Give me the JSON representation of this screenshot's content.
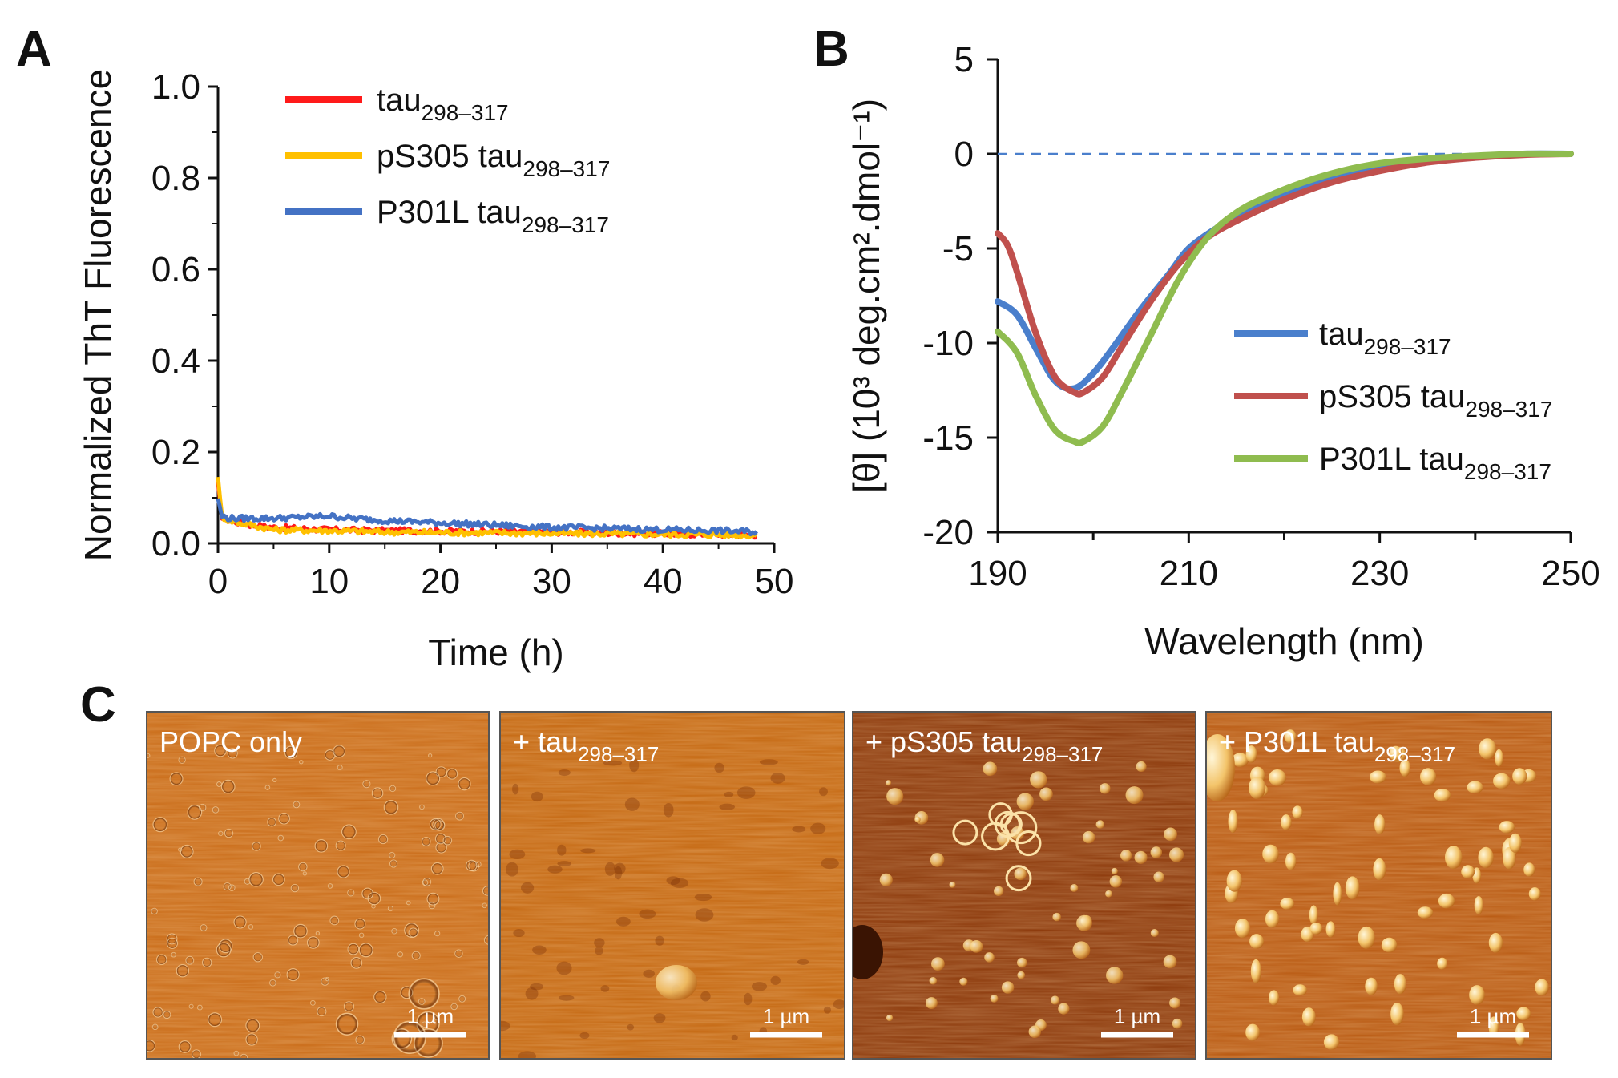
{
  "panels": {
    "A": "A",
    "B": "B",
    "C": "C"
  },
  "chart_data": [
    {
      "panel": "A",
      "type": "line",
      "xlabel": "Time (h)",
      "ylabel": "Normalized ThT Fluorescence",
      "xlim": [
        0,
        50
      ],
      "ylim": [
        0.0,
        1.0
      ],
      "xticks": [
        "0",
        "10",
        "20",
        "30",
        "40",
        "50"
      ],
      "yticks": [
        "0.0",
        "0.2",
        "0.4",
        "0.6",
        "0.8",
        "1.0"
      ],
      "xtick_values": [
        0,
        10,
        20,
        30,
        40,
        50
      ],
      "ytick_values": [
        0.0,
        0.2,
        0.4,
        0.6,
        0.8,
        1.0
      ],
      "legend_position": "top-right",
      "series": [
        {
          "name": "tau",
          "subscript": "298–317",
          "color": "#ff1a1a",
          "x": [
            0,
            0.3,
            1,
            3,
            5,
            10,
            15,
            20,
            25,
            30,
            35,
            40,
            45,
            48.5
          ],
          "y": [
            0.13,
            0.06,
            0.05,
            0.04,
            0.035,
            0.03,
            0.028,
            0.027,
            0.026,
            0.025,
            0.023,
            0.021,
            0.02,
            0.018
          ]
        },
        {
          "name": "pS305 tau",
          "subscript": "298–317",
          "color": "#ffc000",
          "x": [
            0,
            0.3,
            1,
            3,
            5,
            10,
            15,
            20,
            25,
            30,
            35,
            40,
            45,
            48.5
          ],
          "y": [
            0.15,
            0.06,
            0.05,
            0.04,
            0.03,
            0.028,
            0.025,
            0.024,
            0.023,
            0.022,
            0.021,
            0.02,
            0.019,
            0.018
          ]
        },
        {
          "name": "P301L tau",
          "subscript": "298–317",
          "color": "#4472c4",
          "x": [
            0,
            0.3,
            1,
            3,
            5,
            8,
            10,
            12,
            15,
            20,
            25,
            30,
            35,
            40,
            45,
            48.5
          ],
          "y": [
            0.1,
            0.06,
            0.055,
            0.055,
            0.055,
            0.058,
            0.06,
            0.055,
            0.05,
            0.045,
            0.04,
            0.035,
            0.033,
            0.03,
            0.028,
            0.025
          ]
        }
      ]
    },
    {
      "panel": "B",
      "type": "line",
      "xlabel": "Wavelength (nm)",
      "ylabel": "[θ] (10³ deg.cm².dmol⁻¹)",
      "xlim": [
        190,
        250
      ],
      "ylim": [
        -20,
        5
      ],
      "xticks": [
        "190",
        "210",
        "230",
        "250"
      ],
      "yticks": [
        "-20",
        "-15",
        "-10",
        "-5",
        "0",
        "5"
      ],
      "xtick_values": [
        190,
        210,
        230,
        250
      ],
      "ytick_values": [
        -20,
        -15,
        -10,
        -5,
        0,
        5
      ],
      "reference_line": 0,
      "legend_position": "center-right",
      "series": [
        {
          "name": "tau",
          "subscript": "298–317",
          "color": "#4a7fcc",
          "x": [
            190,
            192,
            194,
            196,
            198,
            200,
            202,
            205,
            208,
            210,
            213,
            216,
            220,
            225,
            230,
            235,
            240,
            245,
            250
          ],
          "y": [
            -7.8,
            -8.5,
            -10.3,
            -12.0,
            -12.4,
            -11.6,
            -10.3,
            -8.2,
            -6.3,
            -5.0,
            -3.9,
            -3.1,
            -2.2,
            -1.3,
            -0.7,
            -0.35,
            -0.15,
            0.0,
            0.0
          ]
        },
        {
          "name": "pS305 tau",
          "subscript": "298–317",
          "color": "#c0504d",
          "x": [
            190,
            191,
            192,
            194,
            196,
            198,
            199,
            201,
            203,
            206,
            209,
            212,
            216,
            220,
            225,
            230,
            235,
            240,
            245,
            250
          ],
          "y": [
            -4.2,
            -4.8,
            -6.2,
            -9.5,
            -11.8,
            -12.6,
            -12.6,
            -11.8,
            -10.2,
            -7.8,
            -5.8,
            -4.4,
            -3.3,
            -2.4,
            -1.5,
            -0.9,
            -0.45,
            -0.2,
            -0.05,
            0.0
          ]
        },
        {
          "name": "P301L tau",
          "subscript": "298–317",
          "color": "#8fbc4f",
          "x": [
            190,
            192,
            194,
            196,
            198,
            199,
            201,
            203,
            206,
            209,
            212,
            215,
            218,
            222,
            226,
            230,
            235,
            240,
            245,
            250
          ],
          "y": [
            -9.4,
            -10.5,
            -12.8,
            -14.6,
            -15.2,
            -15.2,
            -14.4,
            -12.6,
            -9.6,
            -6.6,
            -4.4,
            -3.1,
            -2.3,
            -1.5,
            -0.9,
            -0.5,
            -0.25,
            -0.1,
            0.0,
            0.0
          ]
        }
      ]
    }
  ],
  "afm_images": [
    {
      "label": "POPC only",
      "label_sub": "",
      "scale_bar": "1 µm",
      "base_color": "#c96a16"
    },
    {
      "label": "+ tau",
      "label_sub": "298–317",
      "scale_bar": "1 µm",
      "base_color": "#c4660f"
    },
    {
      "label": "+ pS305 tau",
      "label_sub": "298–317",
      "scale_bar": "1 µm",
      "base_color": "#8a3608"
    },
    {
      "label": "+ P301L tau",
      "label_sub": "298–317",
      "scale_bar": "1 µm",
      "base_color": "#b85810"
    }
  ]
}
